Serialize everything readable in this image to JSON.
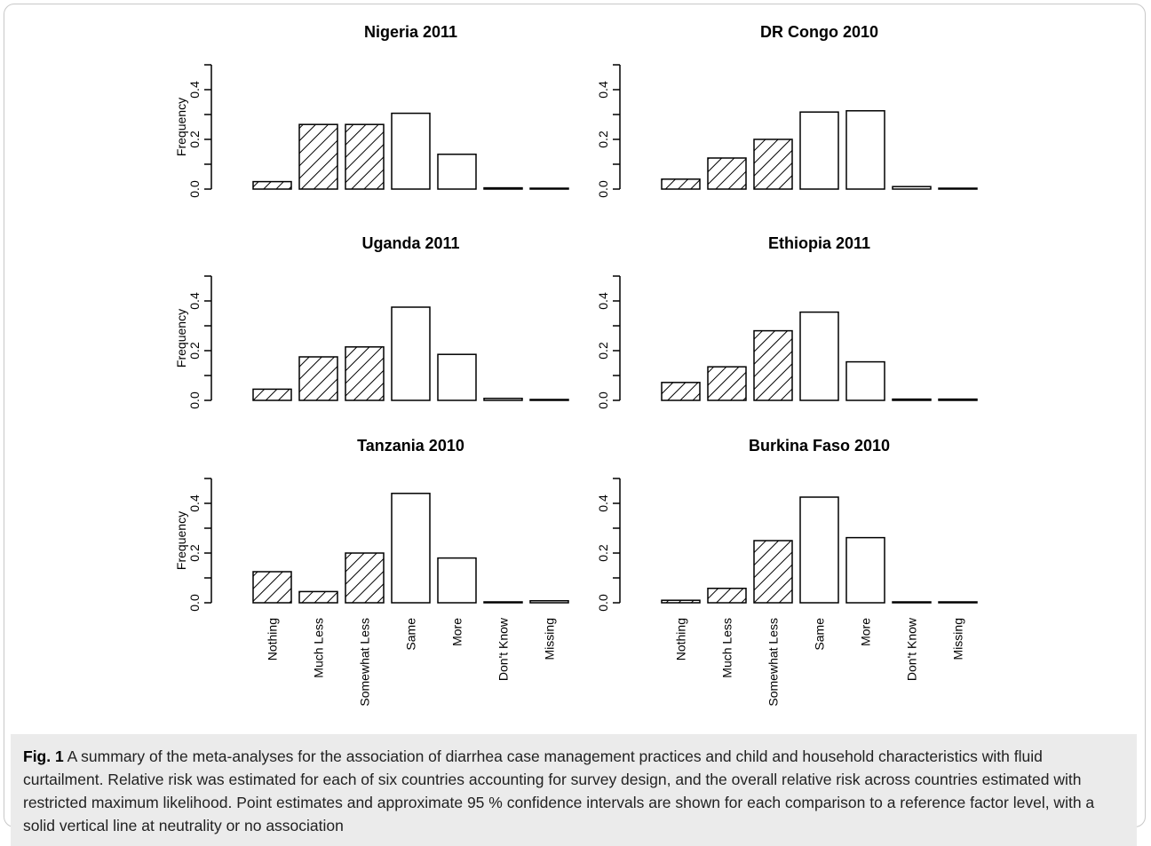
{
  "chart_data": [
    {
      "type": "bar",
      "title": "Nigeria 2011",
      "ylabel": "Frequency",
      "ylim": [
        0,
        0.5
      ],
      "yticks": [
        "0.0",
        "0.2",
        "0.4"
      ],
      "categories": [
        "Nothing",
        "Much Less",
        "Somewhat Less",
        "Same",
        "More",
        "Don't Know",
        "Missing"
      ],
      "values": [
        0.03,
        0.26,
        0.26,
        0.305,
        0.14,
        0.005,
        0.001
      ]
    },
    {
      "type": "bar",
      "title": "DR Congo 2010",
      "ylabel": "",
      "ylim": [
        0,
        0.5
      ],
      "yticks": [
        "0.0",
        "0.2",
        "0.4"
      ],
      "categories": [
        "Nothing",
        "Much Less",
        "Somewhat Less",
        "Same",
        "More",
        "Don't Know",
        "Missing"
      ],
      "values": [
        0.04,
        0.125,
        0.2,
        0.31,
        0.315,
        0.01,
        0.001
      ]
    },
    {
      "type": "bar",
      "title": "Uganda 2011",
      "ylabel": "Frequency",
      "ylim": [
        0,
        0.5
      ],
      "yticks": [
        "0.0",
        "0.2",
        "0.4"
      ],
      "categories": [
        "Nothing",
        "Much Less",
        "Somewhat Less",
        "Same",
        "More",
        "Don't Know",
        "Missing"
      ],
      "values": [
        0.045,
        0.175,
        0.215,
        0.375,
        0.185,
        0.008,
        0.001
      ]
    },
    {
      "type": "bar",
      "title": "Ethiopia 2011",
      "ylabel": "",
      "ylim": [
        0,
        0.5
      ],
      "yticks": [
        "0.0",
        "0.2",
        "0.4"
      ],
      "categories": [
        "Nothing",
        "Much Less",
        "Somewhat Less",
        "Same",
        "More",
        "Don't Know",
        "Missing"
      ],
      "values": [
        0.072,
        0.135,
        0.28,
        0.355,
        0.155,
        0.005,
        0.005
      ]
    },
    {
      "type": "bar",
      "title": "Tanzania 2010",
      "ylabel": "Frequency",
      "ylim": [
        0,
        0.5
      ],
      "yticks": [
        "0.0",
        "0.2",
        "0.4"
      ],
      "categories": [
        "Nothing",
        "Much Less",
        "Somewhat Less",
        "Same",
        "More",
        "Don't Know",
        "Missing"
      ],
      "values": [
        0.125,
        0.045,
        0.2,
        0.44,
        0.18,
        0.001,
        0.008
      ]
    },
    {
      "type": "bar",
      "title": "Burkina Faso 2010",
      "ylabel": "",
      "ylim": [
        0,
        0.5
      ],
      "yticks": [
        "0.0",
        "0.2",
        "0.4"
      ],
      "categories": [
        "Nothing",
        "Much Less",
        "Somewhat Less",
        "Same",
        "More",
        "Don't Know",
        "Missing"
      ],
      "values": [
        0.01,
        0.058,
        0.25,
        0.425,
        0.262,
        0.001,
        0.001
      ]
    }
  ],
  "hatched_categories": [
    "Nothing",
    "Much Less",
    "Somewhat Less"
  ],
  "caption": {
    "label": "Fig. 1",
    "text": "A summary of the meta-analyses for the association of diarrhea case management practices and child and household characteristics with fluid curtailment. Relative risk was estimated for each of six countries accounting for survey design, and the overall relative risk across countries estimated with restricted maximum likelihood. Point estimates and approximate 95 % confidence intervals are shown for each comparison to a reference factor level, with a solid vertical line at neutrality or no association"
  }
}
